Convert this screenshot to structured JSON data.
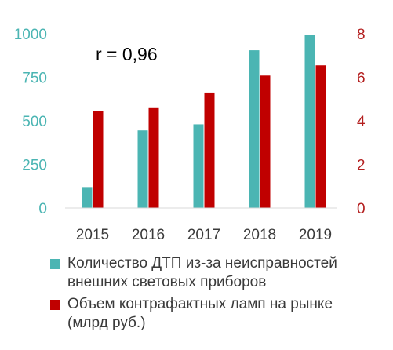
{
  "chart_data": {
    "type": "bar",
    "title": "",
    "categories": [
      "2015",
      "2016",
      "2017",
      "2018",
      "2019"
    ],
    "series": [
      {
        "name": "Количество ДТП из-за неисправностей внешних световых приборов",
        "axis": "left",
        "color": "#4bb5b3",
        "values": [
          120,
          445,
          480,
          905,
          995
        ]
      },
      {
        "name": "Объем контрафактных ламп на рынке (млрд руб.)",
        "axis": "right",
        "color": "#c00000",
        "values": [
          4.45,
          4.62,
          5.3,
          6.08,
          6.55
        ]
      }
    ],
    "y_left": {
      "label": "",
      "range": [
        0,
        1000
      ],
      "ticks": [
        "0",
        "250",
        "500",
        "750",
        "1000"
      ],
      "color": "#4bb5b3"
    },
    "y_right": {
      "label": "",
      "range": [
        0,
        8
      ],
      "ticks": [
        "0",
        "2",
        "4",
        "6",
        "8"
      ],
      "color": "#b41f1f"
    },
    "grid": false,
    "legend_position": "bottom",
    "annotation": "r = 0,96"
  },
  "legend": [
    {
      "label_lines": [
        "Количество ДТП из-за неисправностей",
        "внешних световых приборов"
      ],
      "color": "#4bb5b3"
    },
    {
      "label_lines": [
        "Объем контрафактных ламп на рынке",
        "(млрд руб.)"
      ],
      "color": "#c00000"
    }
  ]
}
